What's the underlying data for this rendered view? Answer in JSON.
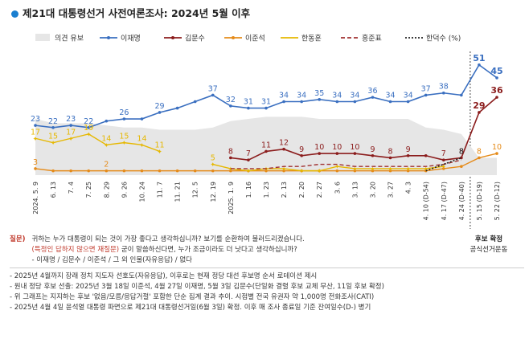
{
  "title": "제21대 대통령선거 사전여론조사: 2024년 5월 이후",
  "colors": {
    "title_dot": "#1a7fd0",
    "undecided": "#e6e6e6",
    "lee_jm": "#3a6fc0",
    "kim_ms": "#8b1c1c",
    "lee_js": "#e58b1a",
    "han_dh": "#e6b800",
    "hong_jp": "#a03030",
    "han_ds": "#222222"
  },
  "chart_data": {
    "type": "line",
    "x": [
      "2024. 5. 9",
      "6. 13",
      "7. 4",
      "7. 25",
      "8. 29",
      "9. 26",
      "10. 24",
      "11. 7",
      "11. 21",
      "12. 5",
      "12. 19",
      "2025. 1. 9",
      "1. 16",
      "1. 23",
      "2. 13",
      "2. 20",
      "2. 27",
      "3. 6",
      "3. 13",
      "3. 20",
      "3. 27",
      "4. 3",
      "4. 10 (D-54)",
      "4. 17 (D-47)",
      "4. 24 (D-40)",
      "5. 15 (D-19)",
      "5. 22 (D-12)"
    ],
    "series": [
      {
        "name": "의견 유보",
        "kind": "area",
        "values": [
          26,
          24,
          24,
          24,
          23,
          22,
          22,
          21,
          21,
          21,
          22,
          25,
          26,
          27,
          27,
          27,
          26,
          26,
          26,
          26,
          26,
          26,
          22,
          21,
          19,
          8,
          8
        ]
      },
      {
        "name": "이재명",
        "values": [
          23,
          22,
          23,
          22,
          25,
          26,
          26,
          29,
          31,
          34,
          37,
          32,
          31,
          31,
          34,
          34,
          35,
          34,
          34,
          36,
          34,
          34,
          37,
          38,
          37,
          51,
          45
        ],
        "labels": [
          "23",
          "22",
          "23",
          "22",
          "",
          "26",
          "",
          "29",
          "",
          "",
          "37",
          "32",
          "31",
          "31",
          "34",
          "34",
          "35",
          "34",
          "34",
          "36",
          "34",
          "34",
          "37",
          "38",
          "",
          "51",
          "45"
        ]
      },
      {
        "name": "김문수",
        "values": [
          null,
          null,
          null,
          null,
          null,
          null,
          null,
          null,
          null,
          null,
          null,
          8,
          7,
          11,
          12,
          9,
          10,
          10,
          10,
          9,
          8,
          9,
          9,
          7,
          8,
          29,
          36
        ],
        "labels": [
          "",
          "",
          "",
          "",
          "",
          "",
          "",
          "",
          "",
          "",
          "",
          "8",
          "7",
          "11",
          "12",
          "9",
          "10",
          "10",
          "10",
          "9",
          "8",
          "9",
          "",
          "7",
          "8",
          "29",
          "36"
        ]
      },
      {
        "name": "이준석",
        "values": [
          3,
          2,
          2,
          2,
          2,
          2,
          2,
          2,
          2,
          2,
          2,
          2,
          2,
          2,
          2,
          2,
          2,
          2,
          2,
          2,
          2,
          2,
          2,
          3,
          4,
          8,
          10
        ],
        "labels": [
          "3",
          "",
          "",
          "",
          "2",
          "",
          "",
          "",
          "",
          "",
          "",
          "",
          "",
          "",
          "",
          "",
          "",
          "",
          "",
          "",
          "",
          "",
          "",
          "",
          "",
          "8",
          "10"
        ]
      },
      {
        "name": "한동훈",
        "values": [
          17,
          15,
          17,
          19,
          14,
          15,
          14,
          11,
          null,
          null,
          5,
          3,
          2,
          3,
          3,
          2,
          2,
          4,
          3,
          3,
          3,
          3,
          3,
          4,
          null,
          null,
          null
        ],
        "labels": [
          "17",
          "15",
          "17",
          "19",
          "14",
          "15",
          "14",
          "11",
          "",
          "",
          "5",
          "",
          "",
          "",
          "",
          "",
          "",
          "",
          "",
          "",
          "",
          "",
          "",
          "",
          "",
          "",
          ""
        ]
      },
      {
        "name": "홍준표",
        "values": [
          null,
          null,
          null,
          null,
          null,
          null,
          null,
          null,
          null,
          null,
          null,
          3,
          3,
          3,
          4,
          4,
          5,
          5,
          4,
          4,
          4,
          4,
          4,
          5,
          7,
          null,
          null
        ],
        "labels": [
          "",
          "",
          "",
          "",
          "",
          "",
          "",
          "",
          "",
          "",
          "",
          "",
          "",
          "",
          "",
          "",
          "",
          "",
          "",
          "",
          "",
          "",
          "",
          "",
          "",
          "",
          ""
        ]
      },
      {
        "name": "한덕수 (%)",
        "values": [
          null,
          null,
          null,
          null,
          null,
          null,
          null,
          null,
          null,
          null,
          null,
          null,
          null,
          null,
          null,
          null,
          null,
          null,
          null,
          null,
          null,
          null,
          2,
          5,
          8,
          null,
          null
        ],
        "labels": [
          "",
          "",
          "",
          "",
          "",
          "",
          "",
          "",
          "",
          "",
          "",
          "",
          "",
          "",
          "",
          "",
          "",
          "",
          "",
          "",
          "",
          "",
          "",
          "",
          "8",
          "",
          ""
        ]
      }
    ],
    "legend": [
      "의견 유보",
      "이재명",
      "김문수",
      "이준석",
      "한동훈",
      "홍준표",
      "한덕수 (%)"
    ],
    "ylim": [
      0,
      55
    ],
    "grid": false,
    "legend_position": "top"
  },
  "question": {
    "label": "질문)",
    "line1": "귀하는 누가 대통령이 되는 것이 가장 좋다고 생각하십니까? 보기를 순환하여 불러드리겠습니다.",
    "line2_highlight": "(특정인 답하지 않으면 재질문)",
    "line2_rest": " 굳이 말씀하신다면, 누가 조금이라도 더 낫다고 생각하십니까?",
    "line3": "- 이재명 / 김문수 / 이준석 / 그 외 인물(자유응답) / 없다"
  },
  "side_note": {
    "line1": "후보 확정",
    "line2": "공식선거운동"
  },
  "footnotes": [
    "- 2025년 4월까지 장래 정치 지도자 선호도(자유응답), 이후로는 현재 정당 대선 후보명 순서 로테이션 제시",
    "- 원내 정당 후보 선출: 2025년 3월 18일 이준석, 4월 27일 이재명, 5월 3일 김문수(단일화 결렬 후보 교체 무산, 11일 후보 확정)",
    "- 위 그래프는 지지하는 후보 '없음/모름/응답거절' 포함한 단순 집계 결과 추이. 시점별 전국 유권자 약 1,000명 전화조사(CATI)",
    "- 2025년 4월 4일 윤석열 대통령 파면으로 제21대 대통령선거일(6월 3일) 확정. 이후 매 조사 종료일 기준 잔여일수(D-) 병기"
  ]
}
